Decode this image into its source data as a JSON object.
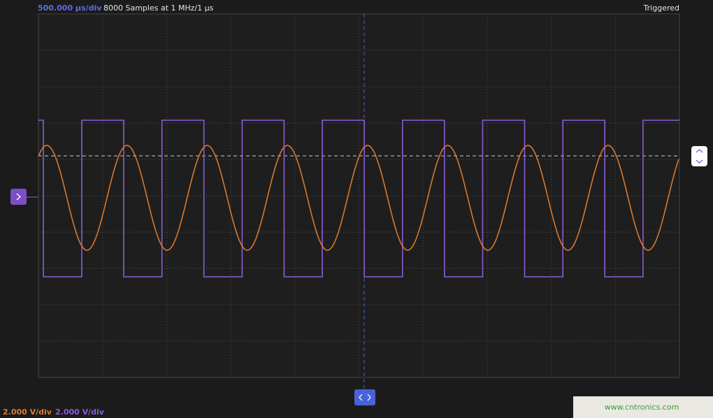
{
  "header": {
    "timebase": "500.000 μs/div",
    "samples": "8000 Samples at 1 MHz/1 μs",
    "status": "Triggered"
  },
  "channels": [
    {
      "scale": "2.000 V/div"
    },
    {
      "scale": "2.000 V/div"
    }
  ],
  "watermark": "www.cntronics.com"
}
